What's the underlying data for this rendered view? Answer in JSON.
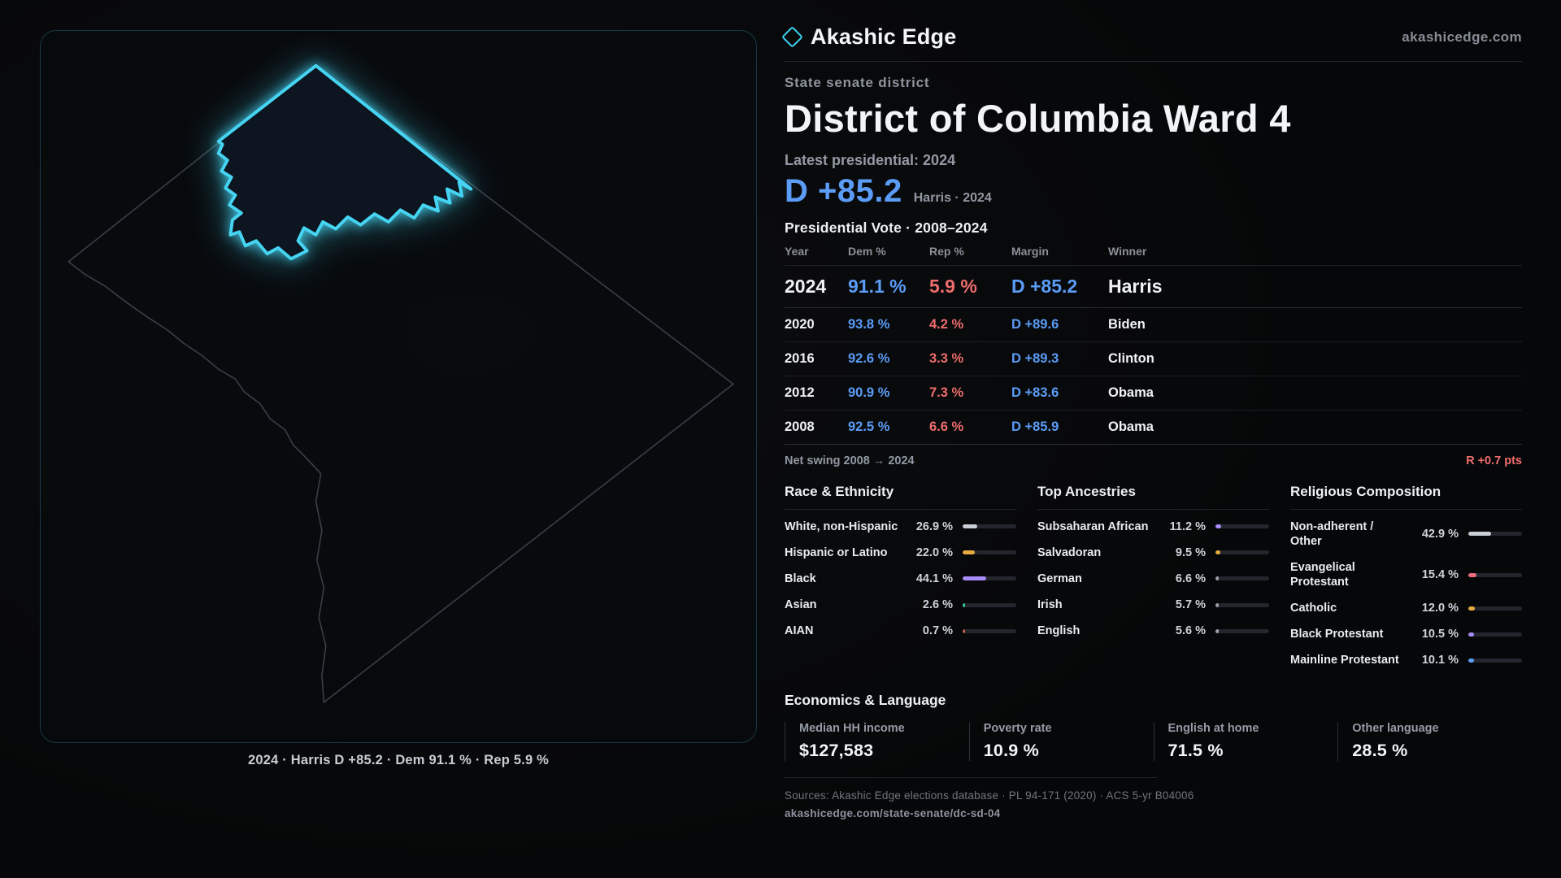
{
  "header": {
    "brand": "Akashic Edge",
    "site": "akashicedge.com"
  },
  "district": {
    "eyebrow": "State senate district",
    "title": "District of Columbia Ward 4",
    "latest_label": "Latest presidential: 2024",
    "headline_margin": "D +85.2",
    "headline_detail": "Harris · 2024"
  },
  "map": {
    "caption": "2024 · Harris D +85.2 · Dem 91.1 % · Rep 5.9 %",
    "accent": "#45d4f1"
  },
  "vote_table": {
    "title": "Presidential Vote · 2008–2024",
    "columns": {
      "year": "Year",
      "dem": "Dem %",
      "rep": "Rep %",
      "margin": "Margin",
      "winner": "Winner"
    },
    "rows": [
      {
        "year": "2024",
        "dem": "91.1 %",
        "rep": "5.9 %",
        "margin": "D +85.2",
        "winner": "Harris"
      },
      {
        "year": "2020",
        "dem": "93.8 %",
        "rep": "4.2 %",
        "margin": "D +89.6",
        "winner": "Biden"
      },
      {
        "year": "2016",
        "dem": "92.6 %",
        "rep": "3.3 %",
        "margin": "D +89.3",
        "winner": "Clinton"
      },
      {
        "year": "2012",
        "dem": "90.9 %",
        "rep": "7.3 %",
        "margin": "D +83.6",
        "winner": "Obama"
      },
      {
        "year": "2008",
        "dem": "92.5 %",
        "rep": "6.6 %",
        "margin": "D +85.9",
        "winner": "Obama"
      }
    ],
    "net_swing_label": "Net swing 2008 → 2024",
    "net_swing_value": "R +0.7 pts"
  },
  "demographics": {
    "race": {
      "title": "Race & Ethnicity",
      "rows": [
        {
          "label": "White, non-Hispanic",
          "value": "26.9 %",
          "pct": 26.9,
          "color": "#c9ced7"
        },
        {
          "label": "Hispanic or Latino",
          "value": "22.0 %",
          "pct": 22.0,
          "color": "#e6aa3f"
        },
        {
          "label": "Black",
          "value": "44.1 %",
          "pct": 44.1,
          "color": "#a78bfa"
        },
        {
          "label": "Asian",
          "value": "2.6 %",
          "pct": 2.6,
          "color": "#38cfa0"
        },
        {
          "label": "AIAN",
          "value": "0.7 %",
          "pct": 0.7,
          "color": "#c2604d"
        }
      ]
    },
    "ancestries": {
      "title": "Top Ancestries",
      "rows": [
        {
          "label": "Subsaharan African",
          "value": "11.2 %",
          "pct": 11.2,
          "color": "#a78bfa"
        },
        {
          "label": "Salvadoran",
          "value": "9.5 %",
          "pct": 9.5,
          "color": "#e6aa3f"
        },
        {
          "label": "German",
          "value": "6.6 %",
          "pct": 6.6,
          "color": "#9aa1ac"
        },
        {
          "label": "Irish",
          "value": "5.7 %",
          "pct": 5.7,
          "color": "#9aa1ac"
        },
        {
          "label": "English",
          "value": "5.6 %",
          "pct": 5.6,
          "color": "#9aa1ac"
        }
      ]
    },
    "religion": {
      "title": "Religious Composition",
      "rows": [
        {
          "label": "Non-adherent / Other",
          "value": "42.9 %",
          "pct": 42.9,
          "color": "#c9ced7"
        },
        {
          "label": "Evangelical Protestant",
          "value": "15.4 %",
          "pct": 15.4,
          "color": "#ef6d7f"
        },
        {
          "label": "Catholic",
          "value": "12.0 %",
          "pct": 12.0,
          "color": "#e6aa3f"
        },
        {
          "label": "Black Protestant",
          "value": "10.5 %",
          "pct": 10.5,
          "color": "#a78bfa"
        },
        {
          "label": "Mainline Protestant",
          "value": "10.1 %",
          "pct": 10.1,
          "color": "#5b9cf6"
        }
      ]
    }
  },
  "economics": {
    "title": "Economics & Language",
    "stats": [
      {
        "label": "Median HH income",
        "value": "$127,583"
      },
      {
        "label": "Poverty rate",
        "value": "10.9 %"
      },
      {
        "label": "English at home",
        "value": "71.5 %"
      },
      {
        "label": "Other language",
        "value": "28.5 %"
      }
    ]
  },
  "footer": {
    "sources": "Sources: Akashic Edge elections database · PL 94-171 (2020) · ACS 5-yr B04006",
    "permalink": "akashicedge.com/state-senate/dc-sd-04"
  },
  "colors": {
    "dem": "#5b9cf6",
    "rep": "#ef6d6d"
  }
}
